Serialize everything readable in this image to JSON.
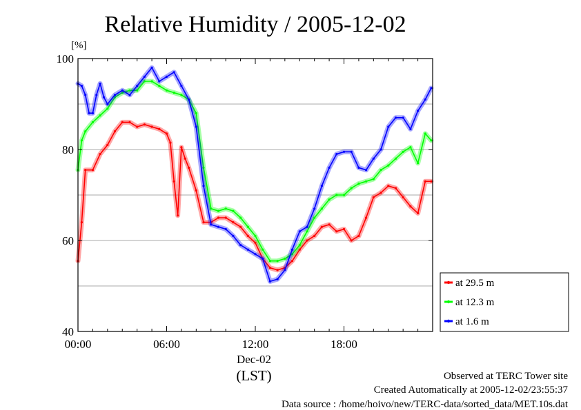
{
  "chart_data": {
    "type": "line",
    "title": "Relative Humidity / 2005-12-02",
    "ylabel": "[%]",
    "xlabel": "(LST)",
    "date_label": "Dec-02",
    "ylim": [
      40,
      100
    ],
    "xlim": [
      0,
      24
    ],
    "yticks": [
      "40",
      "60",
      "80",
      "100"
    ],
    "ytick_values": [
      40,
      60,
      80,
      100
    ],
    "xticks": [
      "00:00",
      "06:00",
      "12:00",
      "18:00"
    ],
    "xtick_values": [
      0,
      6,
      12,
      18
    ],
    "grid_values": [
      50,
      60,
      70,
      80,
      90
    ],
    "grid": true,
    "legend_position": "right-bottom",
    "series": [
      {
        "name": "at 29.5 m",
        "color": "#ff0000",
        "x": [
          0.0,
          0.25,
          0.5,
          1.0,
          1.5,
          2.0,
          2.5,
          3.0,
          3.5,
          4.0,
          4.5,
          5.0,
          5.5,
          6.0,
          6.25,
          6.5,
          6.75,
          7.0,
          7.25,
          7.5,
          8.0,
          8.5,
          9.0,
          9.5,
          10.0,
          10.5,
          11.0,
          11.5,
          12.0,
          12.5,
          13.0,
          13.5,
          14.0,
          14.5,
          15.0,
          15.5,
          16.0,
          16.5,
          17.0,
          17.5,
          18.0,
          18.5,
          19.0,
          19.5,
          20.0,
          20.5,
          21.0,
          21.5,
          22.0,
          22.5,
          23.0,
          23.5,
          23.9
        ],
        "values": [
          55.5,
          64,
          75.5,
          75.5,
          79,
          81,
          84,
          86,
          86,
          85,
          85.5,
          85,
          84.5,
          83.5,
          81.5,
          73,
          65.5,
          80.5,
          78,
          76,
          71,
          64,
          64,
          65,
          65,
          64,
          63,
          61,
          59.5,
          56,
          54,
          53.5,
          54,
          55.5,
          58,
          60,
          61,
          63,
          63.5,
          62,
          62.5,
          60,
          61,
          65,
          69.5,
          70.5,
          72,
          71.5,
          69.5,
          67.5,
          66,
          73,
          73
        ]
      },
      {
        "name": "at 12.3 m",
        "color": "#00ff00",
        "x": [
          0.0,
          0.25,
          0.5,
          1.0,
          1.5,
          2.0,
          2.5,
          3.0,
          3.5,
          4.0,
          4.5,
          5.0,
          5.5,
          6.0,
          6.5,
          7.0,
          7.5,
          8.0,
          8.5,
          9.0,
          9.5,
          10.0,
          10.5,
          11.0,
          11.5,
          12.0,
          12.5,
          13.0,
          13.5,
          14.0,
          14.5,
          15.0,
          15.5,
          16.0,
          16.5,
          17.0,
          17.5,
          18.0,
          18.5,
          19.0,
          19.5,
          20.0,
          20.5,
          21.0,
          21.5,
          22.0,
          22.5,
          23.0,
          23.5,
          23.9
        ],
        "values": [
          75.5,
          82,
          84,
          86,
          87.5,
          89,
          91.5,
          92.5,
          93,
          93,
          95,
          95,
          94,
          93,
          92.5,
          92,
          91,
          88,
          76,
          67,
          66.5,
          67,
          66.5,
          65,
          63,
          61,
          58,
          55.5,
          55.5,
          56,
          57,
          59,
          62,
          65,
          67,
          69,
          70,
          70,
          71.5,
          72.5,
          73,
          73.5,
          75.5,
          76.5,
          78,
          79.5,
          80.5,
          77,
          83.5,
          82
        ]
      },
      {
        "name": "at 1.6 m",
        "color": "#0000ff",
        "x": [
          0.0,
          0.25,
          0.5,
          0.75,
          1.0,
          1.25,
          1.5,
          1.75,
          2.0,
          2.5,
          3.0,
          3.5,
          4.0,
          4.5,
          5.0,
          5.5,
          6.0,
          6.5,
          7.0,
          7.5,
          8.0,
          8.5,
          9.0,
          9.5,
          10.0,
          10.5,
          11.0,
          11.5,
          12.0,
          12.5,
          13.0,
          13.5,
          14.0,
          14.5,
          15.0,
          15.5,
          16.0,
          16.5,
          17.0,
          17.5,
          18.0,
          18.5,
          19.0,
          19.5,
          20.0,
          20.5,
          21.0,
          21.5,
          22.0,
          22.5,
          23.0,
          23.5,
          23.9
        ],
        "values": [
          94.5,
          94,
          92,
          88,
          88,
          92,
          94.5,
          91.5,
          90,
          92,
          93,
          92,
          94,
          96,
          98,
          95,
          96,
          97,
          94,
          91,
          85,
          72,
          63.5,
          63,
          62.5,
          61,
          59,
          58,
          57,
          56,
          51,
          51.5,
          53.5,
          58,
          62,
          63,
          67,
          72,
          76,
          79,
          79.5,
          79.5,
          76,
          75.5,
          78,
          80,
          85,
          87,
          87,
          84.5,
          88.5,
          91,
          93.5
        ]
      }
    ]
  },
  "footer": {
    "line1": "Observed at TERC Tower site",
    "line2": "Created Automatically at 2005-12-02/23:55:37",
    "line3": "Data source : /home/hoivo/new/TERC-data/sorted_data/MET.10s.dat"
  }
}
